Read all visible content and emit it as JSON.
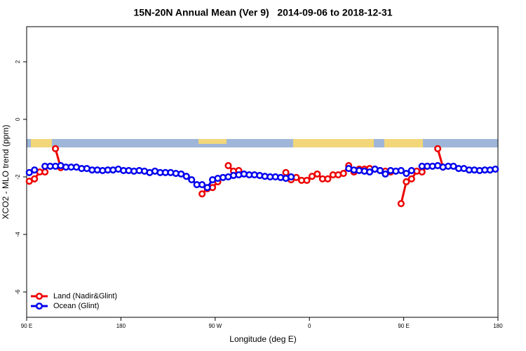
{
  "chart_data": {
    "type": "line",
    "title": "15N-20N Annual Mean (Ver 9)   2014-09-06 to 2018-12-31",
    "x_label": "Longitude (deg E)",
    "y_label": "XCO2 - MLO trend (ppm)",
    "xlim": [
      90,
      540
    ],
    "xticks": [
      {
        "value": 90,
        "label": "90 E"
      },
      180,
      {
        "value": 270,
        "label": "90 W"
      },
      {
        "value": 360,
        "label": "0"
      },
      {
        "value": 450,
        "label": "90 E"
      },
      {
        "value": 540,
        "label": "180"
      }
    ],
    "ylim": [
      -6.88,
      3.22
    ],
    "yticks": [
      -6,
      -4,
      -2,
      0,
      2
    ],
    "legend": "bottomleft",
    "x": [
      92.5,
      97.5,
      102.5,
      107.5,
      112.5,
      117.5,
      122.5,
      127.5,
      132.5,
      137.5,
      142.5,
      147.5,
      152.5,
      157.5,
      162.5,
      167.5,
      172.5,
      177.5,
      182.5,
      187.5,
      192.5,
      197.5,
      202.5,
      207.5,
      212.5,
      217.5,
      222.5,
      227.5,
      232.5,
      237.5,
      242.5,
      247.5,
      252.5,
      257.5,
      262.5,
      267.5,
      272.5,
      277.5,
      282.5,
      287.5,
      292.5,
      297.5,
      302.5,
      307.5,
      312.5,
      317.5,
      322.5,
      327.5,
      332.5,
      337.5,
      342.5,
      347.5,
      352.5,
      357.5,
      362.5,
      367.5,
      372.5,
      377.5,
      382.5,
      387.5,
      392.5,
      397.5,
      402.5,
      407.5,
      412.5,
      417.5,
      422.5,
      427.5,
      432.5,
      437.5,
      442.5,
      447.5,
      452.5,
      457.5,
      462.5,
      467.5,
      472.5,
      477.5,
      482.5,
      487.5,
      492.5,
      497.5,
      502.5,
      507.5,
      512.5,
      517.5,
      522.5,
      527.5,
      532.5,
      537.5
    ],
    "series": [
      {
        "name": "Land (Nadir&Glint)",
        "color": "#ee0000",
        "values": [
          -2.15,
          -2.07,
          -1.83,
          -1.83,
          null,
          -1.02,
          -1.68,
          null,
          null,
          null,
          null,
          null,
          null,
          null,
          null,
          null,
          null,
          null,
          null,
          null,
          null,
          null,
          null,
          null,
          null,
          null,
          null,
          null,
          null,
          null,
          null,
          null,
          null,
          -2.59,
          -2.41,
          -2.37,
          -2.17,
          null,
          -1.61,
          -1.8,
          -1.78,
          null,
          null,
          null,
          null,
          null,
          null,
          null,
          null,
          -1.85,
          -2.1,
          -2.02,
          -2.12,
          -2.12,
          -1.98,
          -1.9,
          -2.07,
          -2.07,
          -1.93,
          -1.93,
          -1.88,
          -1.61,
          -1.83,
          -1.73,
          -1.73,
          -1.71,
          -1.73,
          -1.78,
          -1.8,
          -1.83,
          null,
          -2.93,
          -2.17,
          -2.07,
          -1.8,
          -1.83,
          -1.63,
          null,
          -1.02,
          -1.66,
          null,
          null,
          null,
          null,
          null,
          null,
          null,
          null,
          null,
          null
        ]
      },
      {
        "name": "Ocean (Glint)",
        "color": "#0000ee",
        "values": [
          -1.85,
          -1.76,
          null,
          -1.63,
          -1.63,
          -1.63,
          -1.61,
          -1.66,
          -1.66,
          -1.66,
          -1.71,
          -1.71,
          -1.76,
          -1.76,
          -1.78,
          -1.76,
          -1.76,
          -1.73,
          -1.78,
          -1.78,
          -1.8,
          -1.78,
          -1.8,
          -1.85,
          -1.8,
          -1.85,
          -1.85,
          -1.85,
          -1.88,
          -1.9,
          -1.98,
          -2.1,
          -2.27,
          -2.27,
          -2.37,
          -2.1,
          -2.05,
          -2.02,
          -2.0,
          -1.95,
          -1.93,
          -1.9,
          -1.93,
          -1.93,
          -1.95,
          -1.98,
          -2.0,
          -2.0,
          -2.02,
          -2.05,
          -2.0,
          null,
          null,
          null,
          null,
          null,
          null,
          null,
          null,
          null,
          null,
          -1.71,
          -1.76,
          -1.78,
          -1.8,
          -1.83,
          -1.73,
          -1.78,
          -1.9,
          -1.78,
          -1.8,
          -1.78,
          -1.88,
          -1.78,
          null,
          -1.63,
          -1.63,
          -1.63,
          -1.61,
          -1.66,
          -1.63,
          -1.63,
          -1.71,
          -1.71,
          -1.76,
          -1.76,
          -1.78,
          -1.76,
          -1.76,
          -1.73
        ]
      }
    ]
  }
}
